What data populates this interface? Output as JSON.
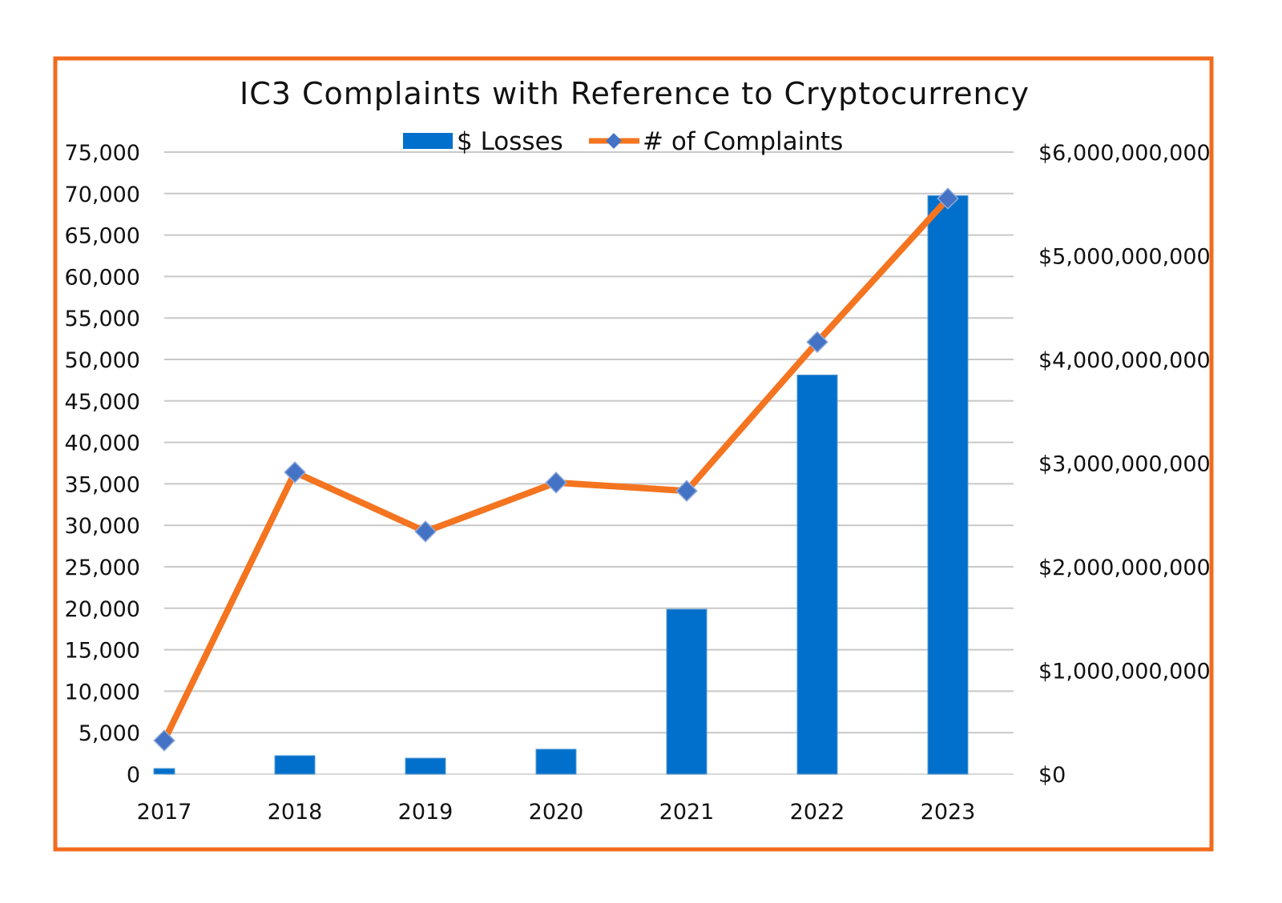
{
  "chart_data": {
    "type": "bar+line",
    "title": "IC3 Complaints with Reference to Cryptocurrency",
    "categories": [
      "2017",
      "2018",
      "2019",
      "2020",
      "2021",
      "2022",
      "2023"
    ],
    "series": [
      {
        "name": "$ Losses",
        "type": "bar",
        "axis": "right",
        "values": [
          54000000,
          178000000,
          154000000,
          240000000,
          1590000000,
          3850000000,
          5580000000
        ]
      },
      {
        "name": "# of Complaints",
        "type": "line",
        "axis": "left",
        "values": [
          4050,
          36400,
          29250,
          35150,
          34150,
          52100,
          69400
        ]
      }
    ],
    "left_axis": {
      "ylim": [
        0,
        75000
      ],
      "tick_labels": [
        "0",
        "5,000",
        "10,000",
        "15,000",
        "20,000",
        "25,000",
        "30,000",
        "35,000",
        "40,000",
        "45,000",
        "50,000",
        "55,000",
        "60,000",
        "65,000",
        "70,000",
        "75,000"
      ]
    },
    "right_axis": {
      "ylim": [
        0,
        6000000000
      ],
      "tick_labels": [
        "$0",
        "$1,000,000,000",
        "$2,000,000,000",
        "$3,000,000,000",
        "$4,000,000,000",
        "$5,000,000,000",
        "$6,000,000,000"
      ]
    },
    "grid": true,
    "legend_position": "top-center",
    "colors": {
      "bars": "#0070CC",
      "line": "#F47420",
      "markers": "#4472C4",
      "frame": "#F26B1D",
      "grid": "#C8C8C8"
    }
  }
}
